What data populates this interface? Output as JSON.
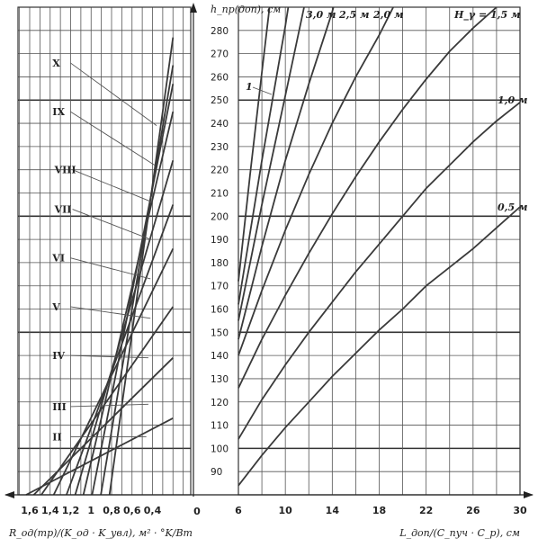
{
  "chart_data": [
    {
      "type": "line",
      "panel": "right",
      "ylabel": "h_пр(доп), см",
      "xlabel": "L_доп/(C_пуч · C_р), см",
      "xlim": [
        6,
        30
      ],
      "ylim": [
        80,
        290
      ],
      "x_ticks": [
        "6",
        "10",
        "14",
        "18",
        "22",
        "26",
        "30"
      ],
      "y_ticks": [
        "90",
        "100",
        "110",
        "120",
        "130",
        "140",
        "150",
        "160",
        "170",
        "180",
        "190",
        "200",
        "210",
        "220",
        "230",
        "240",
        "250",
        "260",
        "270",
        "280"
      ],
      "major_y": [
        100,
        150,
        200,
        250
      ],
      "series": [
        {
          "name": "0,5 м",
          "label_side": "right",
          "points": [
            [
              6,
              84
            ],
            [
              8,
              97
            ],
            [
              10,
              109
            ],
            [
              12,
              120
            ],
            [
              14,
              131
            ],
            [
              16,
              141
            ],
            [
              18,
              151
            ],
            [
              20,
              160
            ],
            [
              22,
              170
            ],
            [
              24,
              178
            ],
            [
              26,
              186
            ],
            [
              28,
              195
            ],
            [
              30,
              204
            ]
          ]
        },
        {
          "name": "1,0 м",
          "label_side": "right",
          "points": [
            [
              6,
              104
            ],
            [
              8,
              121
            ],
            [
              10,
              136
            ],
            [
              12,
              150
            ],
            [
              14,
              163
            ],
            [
              16,
              176
            ],
            [
              18,
              188
            ],
            [
              20,
              200
            ],
            [
              22,
              212
            ],
            [
              24,
              222
            ],
            [
              26,
              232
            ],
            [
              28,
              241
            ],
            [
              30,
              249
            ]
          ]
        },
        {
          "name": "1,5 м",
          "label_side": "top",
          "points": [
            [
              6,
              126
            ],
            [
              8,
              147
            ],
            [
              10,
              166
            ],
            [
              12,
              184
            ],
            [
              14,
              201
            ],
            [
              16,
              217
            ],
            [
              18,
              232
            ],
            [
              20,
              246
            ],
            [
              22,
              259
            ],
            [
              24,
              271
            ],
            [
              26,
              281
            ],
            [
              28,
              290
            ]
          ]
        },
        {
          "name": "2,0 м",
          "label_side": "top",
          "points": [
            [
              6,
              140
            ],
            [
              8,
              168
            ],
            [
              10,
              194
            ],
            [
              12,
              218
            ],
            [
              14,
              240
            ],
            [
              16,
              260
            ],
            [
              18,
              278
            ],
            [
              19.2,
              290
            ]
          ]
        },
        {
          "name": "2,5 м",
          "label_side": "top",
          "points": [
            [
              6,
              147
            ],
            [
              8,
              187
            ],
            [
              10,
              224
            ],
            [
              12,
              257
            ],
            [
              14,
              288
            ],
            [
              14.1,
              290
            ]
          ]
        },
        {
          "name": "",
          "points": [
            [
              6,
              155
            ],
            [
              8,
              205
            ],
            [
              10,
              252
            ],
            [
              11.6,
              290
            ]
          ]
        },
        {
          "name": "3,0 м",
          "label_side": "top",
          "points": [
            [
              6,
              162
            ],
            [
              8,
              224
            ],
            [
              10,
              282
            ],
            [
              10.25,
              290
            ]
          ]
        },
        {
          "name": "1",
          "points": [
            [
              6,
              172
            ],
            [
              7,
              218
            ],
            [
              8,
              262
            ],
            [
              8.65,
              290
            ]
          ]
        }
      ],
      "legend_title": "H_γ = 1,5 м"
    },
    {
      "type": "line",
      "panel": "left",
      "xlabel": "R_од(тр)/(K_од · K_увл), м² · °K/Вт",
      "x_ticks": [
        "1,6",
        "1,4",
        "1,2",
        "1",
        "0,8",
        "0,6",
        "0,4"
      ],
      "x_values": [
        1.6,
        1.4,
        1.2,
        1.0,
        0.8,
        0.6,
        0.4
      ],
      "xlim": [
        1.7,
        0
      ],
      "ylim": [
        80,
        290
      ],
      "origin_label": "0",
      "series": [
        {
          "name": "I",
          "points": [
            [
              1.635,
              80
            ],
            [
              0.2,
              113
            ]
          ]
        },
        {
          "name": "II",
          "points": [
            [
              1.56,
              80
            ],
            [
              0.2,
              139
            ]
          ]
        },
        {
          "name": "III",
          "points": [
            [
              1.487,
              80
            ],
            [
              0.2,
              161
            ]
          ]
        },
        {
          "name": "IV",
          "points": [
            [
              1.365,
              80
            ],
            [
              0.2,
              186
            ]
          ]
        },
        {
          "name": "V",
          "points": [
            [
              1.24,
              80
            ],
            [
              0.2,
              205
            ]
          ]
        },
        {
          "name": "VI",
          "points": [
            [
              1.155,
              80
            ],
            [
              0.2,
              224
            ]
          ]
        },
        {
          "name": "VII",
          "points": [
            [
              1.075,
              80
            ],
            [
              0.2,
              245
            ]
          ]
        },
        {
          "name": "VIII",
          "points": [
            [
              0.99,
              80
            ],
            [
              0.2,
              257
            ]
          ]
        },
        {
          "name": "IX",
          "points": [
            [
              0.905,
              80
            ],
            [
              0.2,
              265
            ]
          ]
        },
        {
          "name": "X",
          "points": [
            [
              0.82,
              80
            ],
            [
              0.2,
              277
            ]
          ]
        }
      ],
      "labels": [
        {
          "text": "X",
          "at": [
            1.36,
            266
          ],
          "to": [
            0.36,
            239
          ]
        },
        {
          "text": "IX",
          "at": [
            1.36,
            245
          ],
          "to": [
            0.38,
            222
          ]
        },
        {
          "text": "VIII",
          "at": [
            1.34,
            220
          ],
          "to": [
            0.4,
            206
          ]
        },
        {
          "text": "VII",
          "at": [
            1.34,
            203
          ],
          "to": [
            0.42,
            190
          ]
        },
        {
          "text": "VI",
          "at": [
            1.36,
            182
          ],
          "to": [
            0.42,
            173
          ]
        },
        {
          "text": "V",
          "at": [
            1.36,
            161
          ],
          "to": [
            0.42,
            156
          ]
        },
        {
          "text": "IV",
          "at": [
            1.36,
            140
          ],
          "to": [
            0.44,
            139
          ]
        },
        {
          "text": "III",
          "at": [
            1.36,
            118
          ],
          "to": [
            0.44,
            119
          ]
        },
        {
          "text": "II",
          "at": [
            1.36,
            105
          ],
          "to": [
            0.46,
            105
          ]
        }
      ]
    }
  ]
}
